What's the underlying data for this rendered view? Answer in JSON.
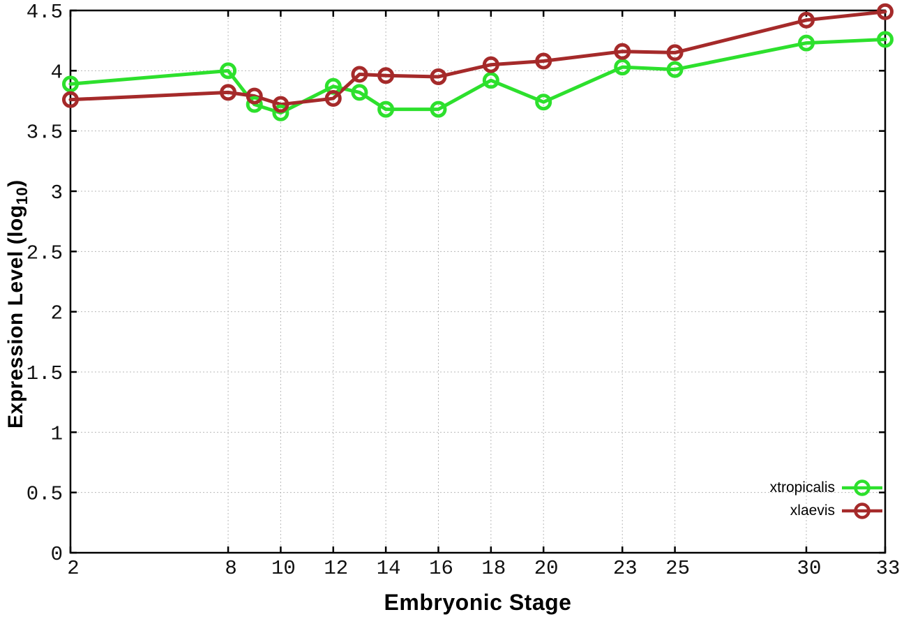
{
  "figure": {
    "background_color": "#ffffff",
    "xlabel": "Embryonic Stage",
    "ylabel_prefix": "Expression Level (log",
    "ylabel_sub": "10",
    "ylabel_suffix": ")"
  },
  "chart_data": {
    "type": "line",
    "title": "",
    "xlabel": "Embryonic Stage",
    "ylabel": "Expression Level (log10)",
    "x": [
      2,
      8,
      9,
      10,
      12,
      13,
      14,
      16,
      18,
      20,
      23,
      25,
      30,
      33
    ],
    "series": [
      {
        "name": "xtropicalis",
        "color": "#2de02d",
        "marker": "open-circle",
        "values": [
          3.89,
          4.0,
          3.72,
          3.65,
          3.87,
          3.82,
          3.68,
          3.68,
          3.92,
          3.74,
          4.03,
          4.01,
          4.23,
          4.26
        ]
      },
      {
        "name": "xlaevis",
        "color": "#a52a2a",
        "marker": "open-circle",
        "values": [
          3.76,
          3.82,
          3.79,
          3.72,
          3.77,
          3.97,
          3.96,
          3.95,
          4.05,
          4.08,
          4.16,
          4.15,
          4.42,
          4.49
        ]
      }
    ],
    "xlim": [
      2,
      33
    ],
    "ylim": [
      0,
      4.5
    ],
    "xticks": [
      2,
      8,
      10,
      12,
      14,
      16,
      18,
      20,
      23,
      25,
      30,
      33
    ],
    "xtick_labels": [
      "2",
      "8",
      "10",
      "12",
      "14",
      "16",
      "18",
      "20",
      "23",
      "25",
      "30",
      "33"
    ],
    "yticks": [
      0,
      0.5,
      1,
      1.5,
      2,
      2.5,
      3,
      3.5,
      4,
      4.5
    ],
    "ytick_labels": [
      "0",
      "0.5",
      "1",
      "1.5",
      "2",
      "2.5",
      "3",
      "3.5",
      "4",
      "4.5"
    ],
    "grid": true,
    "grid_color": "#b8b8b8",
    "axis_color": "#000000",
    "legend_position": "inside-bottom-right"
  }
}
